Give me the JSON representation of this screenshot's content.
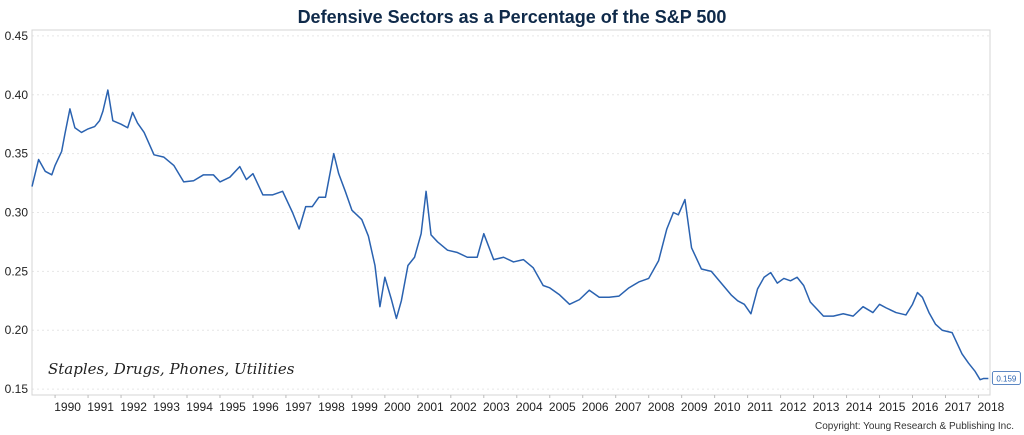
{
  "chart_data": {
    "type": "line",
    "title": "Defensive Sectors as a Percentage of the S&P 500",
    "xlabel": "",
    "ylabel": "",
    "annotation": "Staples, Drugs, Phones, Utilities",
    "copyright": "Copyright: Young Research & Publishing Inc.",
    "last_value_label": "0.159",
    "ylim": [
      0.145,
      0.455
    ],
    "xlim": [
      1989.3,
      2018.35
    ],
    "y_ticks": [
      "0.15",
      "0.20",
      "0.25",
      "0.30",
      "0.35",
      "0.40",
      "0.45"
    ],
    "x_ticks": [
      "1990",
      "1991",
      "1992",
      "1993",
      "1994",
      "1995",
      "1996",
      "1997",
      "1998",
      "1999",
      "2000",
      "2001",
      "2002",
      "2003",
      "2004",
      "2005",
      "2006",
      "2007",
      "2008",
      "2009",
      "2010",
      "2011",
      "2012",
      "2013",
      "2014",
      "2015",
      "2016",
      "2017",
      "2018"
    ],
    "grid": true,
    "colors": {
      "line": "#2a62b0",
      "title": "#0f2a4a",
      "axis": "#d4d4d4"
    },
    "series": [
      {
        "x": [
          1989.3,
          1989.5,
          1989.7,
          1989.9,
          1990.0,
          1990.2,
          1990.3,
          1990.45,
          1990.6,
          1990.8,
          1991.0,
          1991.2,
          1991.35,
          1991.45,
          1991.6,
          1991.75,
          1992.0,
          1992.2,
          1992.35,
          1992.5,
          1992.7,
          1993.0,
          1993.3,
          1993.6,
          1993.9,
          1994.2,
          1994.5,
          1994.8,
          1995.0,
          1995.3,
          1995.6,
          1995.8,
          1996.0,
          1996.3,
          1996.6,
          1996.9,
          1997.2,
          1997.4,
          1997.6,
          1997.8,
          1998.0,
          1998.2,
          1998.45,
          1998.6,
          1998.8,
          1999.0,
          1999.3,
          1999.5,
          1999.7,
          1999.85,
          2000.0,
          2000.2,
          2000.35,
          2000.5,
          2000.7,
          2000.9,
          2001.1,
          2001.25,
          2001.4,
          2001.6,
          2001.9,
          2002.2,
          2002.5,
          2002.8,
          2003.0,
          2003.3,
          2003.6,
          2003.9,
          2004.2,
          2004.5,
          2004.8,
          2005.0,
          2005.3,
          2005.6,
          2005.9,
          2006.2,
          2006.5,
          2006.8,
          2007.1,
          2007.4,
          2007.7,
          2008.0,
          2008.3,
          2008.55,
          2008.75,
          2008.9,
          2009.1,
          2009.3,
          2009.6,
          2009.9,
          2010.2,
          2010.5,
          2010.7,
          2010.9,
          2011.1,
          2011.3,
          2011.5,
          2011.7,
          2011.9,
          2012.1,
          2012.3,
          2012.5,
          2012.7,
          2012.9,
          2013.1,
          2013.3,
          2013.6,
          2013.9,
          2014.2,
          2014.5,
          2014.8,
          2015.0,
          2015.2,
          2015.5,
          2015.8,
          2016.0,
          2016.15,
          2016.3,
          2016.5,
          2016.7,
          2016.9,
          2017.2,
          2017.5,
          2017.7,
          2017.9,
          2018.05,
          2018.15,
          2018.3
        ],
        "y": [
          0.322,
          0.345,
          0.335,
          0.332,
          0.34,
          0.352,
          0.367,
          0.388,
          0.372,
          0.368,
          0.371,
          0.373,
          0.378,
          0.386,
          0.404,
          0.378,
          0.375,
          0.372,
          0.385,
          0.376,
          0.368,
          0.349,
          0.347,
          0.34,
          0.326,
          0.327,
          0.332,
          0.332,
          0.326,
          0.33,
          0.339,
          0.328,
          0.333,
          0.315,
          0.315,
          0.318,
          0.3,
          0.286,
          0.305,
          0.305,
          0.313,
          0.313,
          0.35,
          0.333,
          0.318,
          0.302,
          0.294,
          0.28,
          0.255,
          0.22,
          0.245,
          0.226,
          0.21,
          0.225,
          0.255,
          0.262,
          0.282,
          0.318,
          0.281,
          0.275,
          0.268,
          0.266,
          0.262,
          0.262,
          0.282,
          0.26,
          0.262,
          0.258,
          0.26,
          0.253,
          0.238,
          0.236,
          0.23,
          0.222,
          0.226,
          0.234,
          0.228,
          0.228,
          0.229,
          0.236,
          0.241,
          0.244,
          0.259,
          0.286,
          0.3,
          0.298,
          0.311,
          0.27,
          0.252,
          0.25,
          0.24,
          0.23,
          0.225,
          0.222,
          0.214,
          0.235,
          0.245,
          0.249,
          0.24,
          0.244,
          0.242,
          0.245,
          0.238,
          0.224,
          0.218,
          0.212,
          0.212,
          0.214,
          0.212,
          0.22,
          0.215,
          0.222,
          0.219,
          0.215,
          0.213,
          0.222,
          0.232,
          0.228,
          0.215,
          0.205,
          0.2,
          0.198,
          0.18,
          0.172,
          0.165,
          0.158,
          0.159,
          0.159
        ]
      }
    ]
  }
}
